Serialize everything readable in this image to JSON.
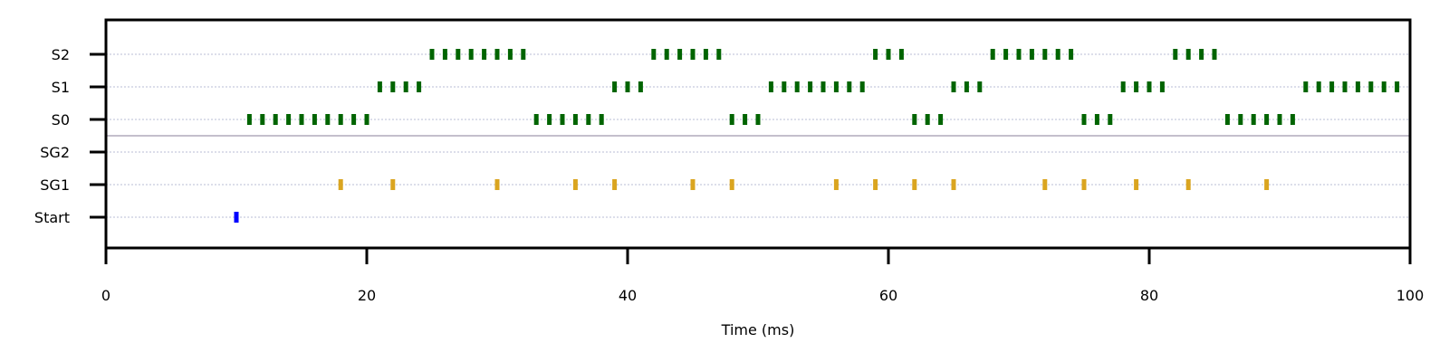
{
  "chart_data": {
    "type": "scatter",
    "title": "",
    "xlabel": "Time (ms)",
    "ylabel": "",
    "xlim": [
      0,
      100
    ],
    "xticks": [
      0,
      20,
      40,
      60,
      80,
      100
    ],
    "xtick_labels": [
      "0",
      "20",
      "40",
      "60",
      "80",
      "100"
    ],
    "rows": [
      "Start",
      "SG1",
      "SG2",
      "S0",
      "S1",
      "S2"
    ],
    "grid": "dotted horizontal lines at each row",
    "separator_between": [
      "SG2",
      "S0"
    ],
    "series": [
      {
        "row": "Start",
        "color": "#0000ff",
        "x": [
          10
        ]
      },
      {
        "row": "SG1",
        "color": "#daa520",
        "x": [
          18,
          22,
          30,
          36,
          39,
          45,
          48,
          56,
          59,
          62,
          65,
          72,
          75,
          79,
          83,
          89
        ]
      },
      {
        "row": "SG2",
        "color": "#daa520",
        "x": []
      },
      {
        "row": "S0",
        "color": "#006400",
        "x": [
          11,
          12,
          13,
          14,
          15,
          16,
          17,
          18,
          19,
          20,
          33,
          34,
          35,
          36,
          37,
          38,
          48,
          49,
          50,
          62,
          63,
          64,
          75,
          76,
          77,
          86,
          87,
          88,
          89,
          90,
          91
        ]
      },
      {
        "row": "S1",
        "color": "#006400",
        "x": [
          21,
          22,
          23,
          24,
          39,
          40,
          41,
          51,
          52,
          53,
          54,
          55,
          56,
          57,
          58,
          65,
          66,
          67,
          78,
          79,
          80,
          81,
          92,
          93,
          94,
          95,
          96,
          97,
          98,
          99
        ]
      },
      {
        "row": "S2",
        "color": "#006400",
        "x": [
          25,
          26,
          27,
          28,
          29,
          30,
          31,
          32,
          42,
          43,
          44,
          45,
          46,
          47,
          59,
          60,
          61,
          68,
          69,
          70,
          71,
          72,
          73,
          74,
          82,
          83,
          84,
          85
        ]
      }
    ]
  }
}
